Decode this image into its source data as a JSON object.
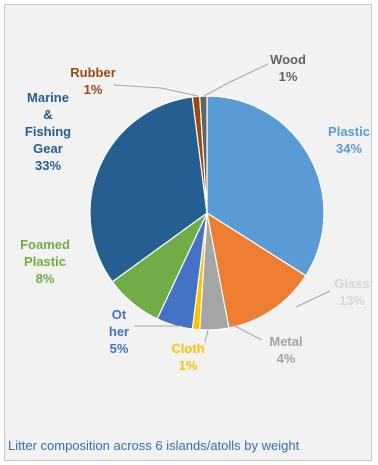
{
  "chart_data": {
    "type": "pie",
    "title": "",
    "caption": "Litter composition across 6 islands/atolls by weight",
    "slices": [
      {
        "name": "Plastic",
        "value": 34,
        "label": "Plastic\n34%",
        "color": "#5b9bd5",
        "labelColor": "#5b9bd5"
      },
      {
        "name": "Glass",
        "value": 13,
        "label": "Glass\n13%",
        "color": "#ed7d31",
        "labelColor": "#d6d6d6"
      },
      {
        "name": "Metal",
        "value": 4,
        "label": "Metal\n4%",
        "color": "#a5a5a5",
        "labelColor": "#a5a5a5"
      },
      {
        "name": "Cloth",
        "value": 1,
        "label": "Cloth\n1%",
        "color": "#ffc000",
        "labelColor": "#ffc000"
      },
      {
        "name": "Other",
        "value": 5,
        "label": "Ot\nher\n5%",
        "color": "#4472c4",
        "labelColor": "#4472c4"
      },
      {
        "name": "Foamed Plastic",
        "value": 8,
        "label": "Foamed\nPlastic\n8%",
        "color": "#70ad47",
        "labelColor": "#70ad47"
      },
      {
        "name": "Marine & Fishing Gear",
        "value": 33,
        "label": "Marine\n&\nFishing\nGear\n33%",
        "color": "#255e91",
        "labelColor": "#255e91"
      },
      {
        "name": "Rubber",
        "value": 1,
        "label": "Rubber\n1%",
        "color": "#9e480e",
        "labelColor": "#9e480e"
      },
      {
        "name": "Wood",
        "value": 1,
        "label": "Wood\n1%",
        "color": "#636363",
        "labelColor": "#636363"
      }
    ]
  }
}
